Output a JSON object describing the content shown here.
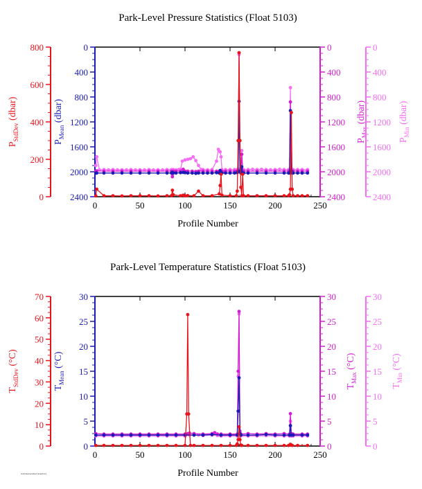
{
  "footnote": "AutoGenerated Graphics",
  "colors": {
    "stddev": "#e8141c",
    "mean": "#1a1ab4",
    "max": "#d21ed2",
    "min": "#f56ef5",
    "axis_black": "#000000"
  },
  "chart_data": [
    {
      "type": "line",
      "title": "Park-Level Pressure Statistics (Float 5103)",
      "xlabel": "Profile Number",
      "xlim": [
        0,
        250
      ],
      "xticks": [
        0,
        50,
        100,
        150,
        200,
        250
      ],
      "axes": [
        {
          "id": "stddev",
          "label_main": "P",
          "label_sub": "StdDev",
          "label_unit": " (dbar)",
          "ylim": [
            0,
            800
          ],
          "inverted": false,
          "ticks": [
            0,
            200,
            400,
            600,
            800
          ]
        },
        {
          "id": "mean",
          "label_main": "P",
          "label_sub": "Mean",
          "label_unit": " (dbar)",
          "ylim": [
            2400,
            0
          ],
          "inverted": true,
          "ticks": [
            0,
            400,
            800,
            1200,
            1600,
            2000,
            2400
          ]
        },
        {
          "id": "max",
          "label_main": "P",
          "label_sub": "Max",
          "label_unit": " (dbar)",
          "ylim": [
            2400,
            0
          ],
          "inverted": true,
          "ticks": [
            0,
            400,
            800,
            1200,
            1600,
            2000,
            2400
          ]
        },
        {
          "id": "min",
          "label_main": "P",
          "label_sub": "Min",
          "label_unit": " (dbar)",
          "ylim": [
            2400,
            0
          ],
          "inverted": true,
          "ticks": [
            0,
            400,
            800,
            1200,
            1600,
            2000,
            2400
          ]
        }
      ],
      "series": [
        {
          "name": "StdDev",
          "axis": "stddev",
          "color": "#e8141c",
          "x": [
            1,
            2,
            10,
            20,
            30,
            40,
            50,
            60,
            70,
            80,
            85,
            86,
            87,
            95,
            98,
            100,
            103,
            110,
            115,
            120,
            130,
            138,
            139,
            140,
            141,
            150,
            157,
            158,
            159,
            160,
            161,
            162,
            163,
            164,
            165,
            170,
            180,
            190,
            200,
            210,
            215,
            216,
            217,
            218,
            219,
            220,
            225,
            230,
            236
          ],
          "y": [
            4,
            40,
            5,
            5,
            4,
            5,
            5,
            5,
            4,
            5,
            6,
            35,
            10,
            5,
            8,
            5,
            6,
            5,
            30,
            5,
            5,
            15,
            60,
            120,
            8,
            5,
            5,
            30,
            300,
            770,
            300,
            50,
            5,
            120,
            5,
            5,
            5,
            5,
            5,
            5,
            5,
            10,
            40,
            450,
            40,
            5,
            5,
            5,
            5
          ]
        },
        {
          "name": "Mean",
          "axis": "mean",
          "color": "#1a1ab4",
          "x": [
            1,
            2,
            10,
            20,
            30,
            40,
            50,
            60,
            70,
            80,
            85,
            86,
            87,
            90,
            95,
            98,
            100,
            103,
            108,
            112,
            115,
            120,
            125,
            130,
            135,
            138,
            139,
            140,
            141,
            145,
            150,
            155,
            158,
            159,
            160,
            161,
            162,
            163,
            164,
            165,
            170,
            180,
            190,
            200,
            210,
            215,
            216,
            217,
            218,
            219,
            220,
            225,
            230,
            236
          ],
          "y": [
            2020,
            2020,
            2020,
            2020,
            2020,
            2020,
            2020,
            2020,
            2020,
            2020,
            2020,
            2010,
            2020,
            2020,
            2015,
            2010,
            2015,
            2020,
            2020,
            2025,
            2020,
            2020,
            2020,
            2020,
            2015,
            2020,
            1980,
            2020,
            2020,
            2020,
            2020,
            2020,
            2015,
            1990,
            870,
            2000,
            2020,
            1920,
            2020,
            2020,
            2020,
            2020,
            2020,
            2020,
            2020,
            2020,
            2020,
            1020,
            1980,
            2020,
            2020,
            2020,
            2020,
            2020
          ]
        },
        {
          "name": "Max",
          "axis": "max",
          "color": "#d21ed2",
          "x": [
            1,
            2,
            10,
            20,
            30,
            40,
            50,
            60,
            70,
            80,
            85,
            86,
            87,
            90,
            95,
            98,
            100,
            103,
            108,
            112,
            115,
            120,
            125,
            130,
            135,
            138,
            139,
            140,
            141,
            145,
            150,
            155,
            158,
            159,
            160,
            161,
            162,
            163,
            164,
            165,
            170,
            180,
            190,
            200,
            210,
            215,
            216,
            217,
            218,
            219,
            220,
            225,
            230,
            236
          ],
          "y": [
            1990,
            1985,
            1990,
            1990,
            1990,
            1990,
            1990,
            1990,
            1990,
            1990,
            1990,
            2080,
            1990,
            1990,
            1990,
            1960,
            1990,
            1990,
            1990,
            1995,
            1990,
            1990,
            1990,
            1990,
            1990,
            1990,
            1990,
            2010,
            1990,
            1990,
            1990,
            1990,
            1990,
            1990,
            90,
            1990,
            1990,
            1720,
            1990,
            1990,
            1990,
            1990,
            1990,
            1990,
            1990,
            1990,
            1990,
            880,
            1990,
            1990,
            1990,
            1990,
            1990,
            1990
          ]
        },
        {
          "name": "Min",
          "axis": "min",
          "color": "#f56ef5",
          "x": [
            1,
            2,
            5,
            10,
            15,
            20,
            25,
            30,
            35,
            40,
            45,
            50,
            55,
            60,
            65,
            70,
            75,
            80,
            85,
            86,
            87,
            90,
            93,
            95,
            97,
            100,
            103,
            106,
            109,
            112,
            115,
            118,
            120,
            125,
            130,
            135,
            137,
            139,
            140,
            141,
            142,
            145,
            150,
            155,
            158,
            159,
            160,
            161,
            162,
            163,
            164,
            165,
            170,
            175,
            180,
            185,
            190,
            195,
            200,
            205,
            210,
            215,
            216,
            217,
            218,
            219,
            220,
            225,
            230,
            236
          ],
          "y": [
            1900,
            1760,
            1970,
            1965,
            1970,
            1965,
            1970,
            1968,
            1970,
            1965,
            1970,
            1968,
            1970,
            1965,
            1970,
            1968,
            1970,
            1965,
            1965,
            2050,
            1965,
            1970,
            1965,
            1960,
            1830,
            1810,
            1800,
            1790,
            1760,
            1820,
            1900,
            1965,
            1965,
            1968,
            1965,
            1830,
            1640,
            1680,
            1760,
            1965,
            2000,
            1965,
            1965,
            1965,
            1965,
            1960,
            120,
            1960,
            1960,
            1660,
            1965,
            1965,
            1965,
            1960,
            1965,
            1960,
            1965,
            1968,
            1965,
            1960,
            1965,
            1965,
            1965,
            650,
            1950,
            1965,
            1965,
            1965,
            1965,
            1965
          ]
        }
      ]
    },
    {
      "type": "line",
      "title": "Park-Level Temperature Statistics (Float 5103)",
      "xlabel": "Profile Number",
      "xlim": [
        0,
        250
      ],
      "xticks": [
        0,
        50,
        100,
        150,
        200,
        250
      ],
      "axes": [
        {
          "id": "stddev",
          "label_main": "T",
          "label_sub": "StdDev",
          "label_unit": " (°C)",
          "ylim": [
            0,
            70
          ],
          "inverted": false,
          "ticks": [
            0,
            10,
            20,
            30,
            40,
            50,
            60,
            70
          ]
        },
        {
          "id": "mean",
          "label_main": "T",
          "label_sub": "Mean",
          "label_unit": " (°C)",
          "ylim": [
            0,
            30
          ],
          "inverted": false,
          "ticks": [
            0,
            5,
            10,
            15,
            20,
            25,
            30
          ]
        },
        {
          "id": "max",
          "label_main": "T",
          "label_sub": "Max",
          "label_unit": " (°C)",
          "ylim": [
            0,
            30
          ],
          "inverted": false,
          "ticks": [
            0,
            5,
            10,
            15,
            20,
            25,
            30
          ]
        },
        {
          "id": "min",
          "label_main": "T",
          "label_sub": "Min",
          "label_unit": " (°C)",
          "ylim": [
            0,
            30
          ],
          "inverted": false,
          "ticks": [
            0,
            5,
            10,
            15,
            20,
            25,
            30
          ]
        }
      ],
      "series": [
        {
          "name": "StdDev",
          "axis": "stddev",
          "color": "#e8141c",
          "x": [
            1,
            10,
            20,
            30,
            40,
            50,
            60,
            70,
            80,
            90,
            100,
            102,
            103,
            104,
            106,
            110,
            120,
            130,
            140,
            150,
            157,
            158,
            159,
            160,
            161,
            162,
            163,
            170,
            180,
            190,
            200,
            210,
            215,
            217,
            218,
            219,
            225,
            236
          ],
          "y": [
            0.3,
            0.3,
            0.3,
            0.3,
            0.3,
            0.3,
            0.3,
            0.3,
            0.3,
            0.3,
            0.3,
            15,
            61.5,
            15,
            0.3,
            0.3,
            0.3,
            0.3,
            0.3,
            0.3,
            0.3,
            1,
            3,
            9,
            3,
            0.5,
            0.3,
            0.3,
            0.3,
            0.3,
            0.3,
            0.3,
            0.3,
            0.8,
            0.5,
            0.3,
            0.3,
            0.3
          ]
        },
        {
          "name": "Mean",
          "axis": "mean",
          "color": "#1a1ab4",
          "x": [
            1,
            10,
            20,
            30,
            40,
            50,
            60,
            70,
            80,
            90,
            100,
            110,
            120,
            130,
            140,
            150,
            158,
            159,
            160,
            161,
            162,
            170,
            180,
            190,
            200,
            210,
            216,
            217,
            218,
            220,
            230,
            236
          ],
          "y": [
            2.2,
            2.2,
            2.2,
            2.2,
            2.2,
            2.2,
            2.2,
            2.2,
            2.2,
            2.2,
            2.2,
            2.2,
            2.2,
            2.3,
            2.2,
            2.2,
            2.2,
            7,
            13.7,
            2.5,
            2.2,
            2.2,
            2.2,
            2.3,
            2.2,
            2.2,
            2.2,
            4.1,
            2.2,
            2.2,
            2.2,
            2.2
          ]
        },
        {
          "name": "Max",
          "axis": "max",
          "color": "#d21ed2",
          "x": [
            1,
            10,
            20,
            30,
            40,
            50,
            60,
            70,
            80,
            90,
            100,
            103,
            105,
            110,
            120,
            130,
            133,
            136,
            140,
            150,
            158,
            159,
            160,
            161,
            162,
            170,
            180,
            190,
            200,
            210,
            216,
            217,
            218,
            220,
            230,
            236
          ],
          "y": [
            2.5,
            2.4,
            2.4,
            2.4,
            2.4,
            2.4,
            2.4,
            2.4,
            2.4,
            2.4,
            2.4,
            2.5,
            2.6,
            2.5,
            2.4,
            2.5,
            2.7,
            2.4,
            2.4,
            2.4,
            2.4,
            15,
            27,
            3,
            2.4,
            2.5,
            2.4,
            2.5,
            2.4,
            2.5,
            2.4,
            6.5,
            2.5,
            2.4,
            2.4,
            2.4
          ]
        },
        {
          "name": "Min",
          "axis": "min",
          "color": "#f56ef5",
          "x": [
            1,
            10,
            20,
            30,
            40,
            50,
            60,
            70,
            80,
            90,
            100,
            105,
            110,
            115,
            120,
            130,
            133,
            136,
            140,
            150,
            158,
            159,
            160,
            161,
            162,
            170,
            180,
            190,
            200,
            210,
            216,
            217,
            218,
            220,
            230,
            236
          ],
          "y": [
            2.0,
            2.0,
            2.0,
            2.0,
            2.0,
            2.0,
            2.0,
            2.0,
            2.0,
            2.0,
            2.0,
            2.2,
            2.3,
            2.2,
            2.1,
            2.2,
            2.4,
            2.1,
            2.0,
            2.0,
            2.0,
            14,
            26.5,
            2.5,
            2.0,
            2.0,
            2.0,
            2.1,
            2.0,
            2.0,
            2.0,
            5,
            2.0,
            2.0,
            2.0,
            2.0
          ]
        }
      ]
    }
  ]
}
